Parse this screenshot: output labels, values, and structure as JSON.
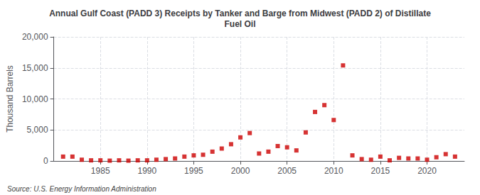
{
  "chart_data": {
    "type": "scatter",
    "title": "Annual Gulf Coast (PADD 3) Receipts by Tanker and Barge from Midwest (PADD 2) of Distillate\nFuel Oil",
    "ylabel": "Thousand Barrels",
    "annotation": "Source: U.S. Energy Information Administration",
    "x": [
      1981,
      1982,
      1983,
      1984,
      1985,
      1986,
      1987,
      1988,
      1989,
      1990,
      1991,
      1992,
      1993,
      1994,
      1995,
      1996,
      1997,
      1998,
      1999,
      2000,
      2001,
      2002,
      2003,
      2004,
      2005,
      2006,
      2007,
      2008,
      2009,
      2010,
      2011,
      2012,
      2013,
      2014,
      2015,
      2016,
      2017,
      2018,
      2019,
      2020,
      2021,
      2022,
      2023
    ],
    "values": [
      700,
      700,
      200,
      100,
      100,
      50,
      100,
      50,
      100,
      100,
      200,
      300,
      400,
      700,
      900,
      1000,
      1500,
      2000,
      2700,
      3800,
      4500,
      1200,
      1500,
      2400,
      2200,
      1700,
      4600,
      7900,
      9000,
      6600,
      15400,
      900,
      300,
      200,
      700,
      100,
      500,
      400,
      400,
      200,
      600,
      1100,
      700
    ],
    "color": "#cc0000",
    "marker": "square",
    "xlim": [
      1980,
      2024
    ],
    "xticks": [
      1985,
      1990,
      1995,
      2000,
      2005,
      2010,
      2015,
      2020
    ],
    "ylim": [
      0,
      20000
    ],
    "yticks": [
      0,
      {
        "value": 5000,
        "label": "5,000"
      },
      {
        "value": 10000,
        "label": "10,000"
      },
      {
        "value": 15000,
        "label": "15,000"
      },
      {
        "value": 20000,
        "label": "20,000"
      }
    ],
    "grid": true
  }
}
